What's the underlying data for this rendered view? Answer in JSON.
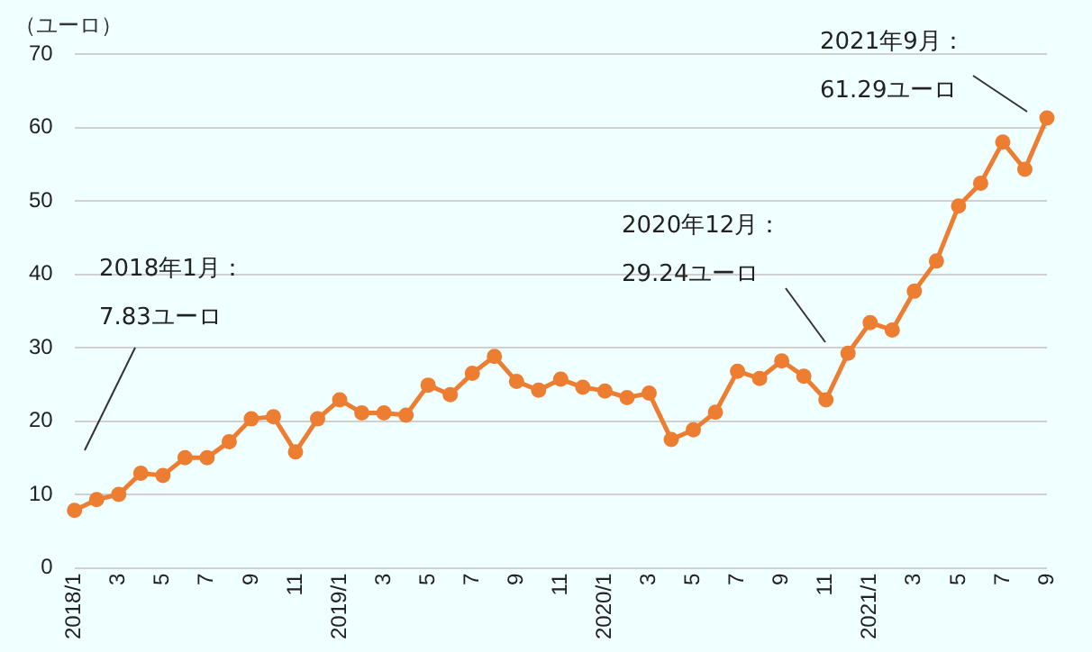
{
  "chart_data": {
    "type": "line",
    "ylabel": "（ユーロ）",
    "categories": [
      "2018/1",
      null,
      "3",
      null,
      "5",
      null,
      "7",
      null,
      "9",
      null,
      "11",
      null,
      "2019/1",
      null,
      "3",
      null,
      "5",
      null,
      "7",
      null,
      "9",
      null,
      "11",
      null,
      "2020/1",
      null,
      "3",
      null,
      "5",
      null,
      "7",
      null,
      "9",
      null,
      "11",
      null,
      "2021/1",
      null,
      "3",
      null,
      "5",
      null,
      "7",
      null,
      "9"
    ],
    "series": [
      {
        "color": "#ed7d31",
        "values": [
          7.83,
          9.3,
          10,
          12.9,
          12.6,
          15,
          15,
          17.2,
          20.3,
          20.6,
          15.8,
          20.3,
          22.9,
          21.1,
          21.1,
          20.8,
          24.9,
          23.6,
          26.5,
          28.8,
          25.4,
          24.2,
          25.7,
          24.6,
          24.1,
          23.2,
          23.8,
          17.5,
          18.8,
          21.2,
          26.8,
          25.8,
          28.2,
          26.1,
          22.9,
          29.24,
          33.4,
          32.4,
          37.7,
          41.8,
          49.3,
          52.4,
          58,
          54.3,
          61.29
        ]
      }
    ],
    "ylim": [
      0,
      70
    ],
    "yticks": [
      0,
      10,
      20,
      30,
      40,
      50,
      60,
      70
    ],
    "grid": "y",
    "marker": "circle",
    "line_style": "solid",
    "legend": false,
    "annotations": [
      "2018年1月：\n7.83ユーロ",
      "2020年12月：\n29.24ユーロ",
      "2021年9月：\n61.29ユーロ"
    ]
  }
}
